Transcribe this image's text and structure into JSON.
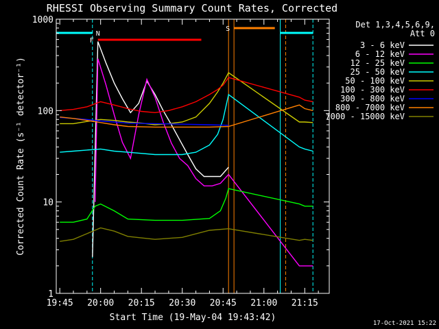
{
  "chart_data": {
    "type": "line",
    "title": "RHESSI Observing Summary Count Rates, Corrected",
    "xlabel": "Start Time (19-May-04 19:43:42)",
    "ylabel": "Corrected Count Rate (s⁻¹ detector⁻¹)",
    "y_scale": "log",
    "ylim": [
      1,
      1000
    ],
    "xlim": [
      "19:43:42",
      "21:24:00"
    ],
    "x_ticks": [
      "19:45",
      "20:00",
      "20:15",
      "20:30",
      "20:45",
      "21:00",
      "21:15"
    ],
    "y_ticks": [
      "1",
      "10",
      "100",
      "1000"
    ],
    "legend_header": [
      "Det 1,3,4,5,6,9,",
      "Att 0"
    ],
    "legend_position": "right",
    "colors": {
      "3 - 6 keV": "#ffffff",
      "6 - 12 keV": "#ff00ff",
      "12 - 25 keV": "#00ff00",
      "25 - 50 keV": "#00ffff",
      "50 - 100 keV": "#cccc00",
      "100 - 300 keV": "#ff0000",
      "300 - 800 keV": "#0000ff",
      "800 - 7000 keV": "#ff8000",
      "7000 - 15000 keV": "#808000"
    },
    "series": [
      {
        "name": "3 - 6 keV",
        "x": [
          "19:57",
          "19:59",
          "20:02",
          "20:05",
          "20:08",
          "20:11",
          "20:14",
          "20:17",
          "20:20",
          "20:23",
          "20:26",
          "20:29",
          "20:32",
          "20:35",
          "20:38",
          "20:41",
          "20:44",
          "20:47"
        ],
        "y": [
          2.5,
          570,
          330,
          200,
          135,
          95,
          120,
          210,
          150,
          100,
          70,
          48,
          33,
          23,
          19,
          19,
          19,
          24
        ]
      },
      {
        "name": "6 - 12 keV",
        "x": [
          "19:58",
          "19:59",
          "20:02",
          "20:05",
          "20:08",
          "20:11",
          "20:14",
          "20:17",
          "20:20",
          "20:23",
          "20:26",
          "20:29",
          "20:32",
          "20:35",
          "20:38",
          "20:41",
          "20:44",
          "20:47",
          "21:13",
          "21:15",
          "21:18"
        ],
        "y": [
          10,
          370,
          190,
          90,
          45,
          30,
          90,
          220,
          140,
          75,
          44,
          30,
          25,
          18,
          15,
          15,
          16,
          20,
          2,
          2,
          2
        ]
      },
      {
        "name": "12 - 25 keV",
        "x": [
          "19:45",
          "19:50",
          "19:55",
          "19:58",
          "20:00",
          "20:05",
          "20:10",
          "20:20",
          "20:30",
          "20:40",
          "20:44",
          "20:46",
          "20:47",
          "21:13",
          "21:15",
          "21:18"
        ],
        "y": [
          6,
          6,
          6.5,
          9,
          9.5,
          8,
          6.5,
          6.3,
          6.3,
          6.6,
          8,
          11,
          14,
          9.5,
          9,
          9
        ]
      },
      {
        "name": "25 - 50 keV",
        "x": [
          "19:45",
          "19:50",
          "19:55",
          "20:00",
          "20:05",
          "20:10",
          "20:20",
          "20:30",
          "20:35",
          "20:40",
          "20:43",
          "20:45",
          "20:47",
          "21:13",
          "21:15",
          "21:18"
        ],
        "y": [
          35,
          36,
          37,
          38,
          36,
          35,
          33,
          33,
          35,
          42,
          55,
          80,
          150,
          40,
          38,
          36
        ]
      },
      {
        "name": "50 - 100 keV",
        "x": [
          "19:45",
          "19:50",
          "19:55",
          "20:00",
          "20:05",
          "20:10",
          "20:15",
          "20:20",
          "20:25",
          "20:30",
          "20:35",
          "20:40",
          "20:43",
          "20:45",
          "20:47",
          "21:13",
          "21:15",
          "21:18"
        ],
        "y": [
          72,
          72,
          76,
          80,
          78,
          75,
          73,
          70,
          72,
          75,
          85,
          120,
          160,
          200,
          260,
          75,
          75,
          74
        ]
      },
      {
        "name": "100 - 300 keV",
        "x": [
          "19:45",
          "19:50",
          "19:55",
          "20:00",
          "20:05",
          "20:10",
          "20:15",
          "20:20",
          "20:25",
          "20:30",
          "20:35",
          "20:40",
          "20:43",
          "20:45",
          "20:47",
          "21:13",
          "21:15",
          "21:18"
        ],
        "y": [
          100,
          103,
          110,
          125,
          115,
          105,
          98,
          95,
          100,
          110,
          125,
          150,
          170,
          190,
          230,
          140,
          130,
          125
        ]
      },
      {
        "name": "300 - 800 keV",
        "x": [
          "19:45",
          "19:50",
          "19:55",
          "20:00",
          "20:05",
          "20:10",
          "20:20",
          "20:30",
          "20:40",
          "20:47"
        ],
        "y": [
          84,
          82,
          80,
          77,
          75,
          73,
          72,
          71,
          70,
          69
        ]
      },
      {
        "name": "800 - 7000 keV",
        "x": [
          "19:45",
          "19:50",
          "19:55",
          "20:00",
          "20:05",
          "20:10",
          "20:20",
          "20:30",
          "20:40",
          "20:47",
          "21:13",
          "21:15",
          "21:18"
        ],
        "y": [
          85,
          82,
          78,
          74,
          70,
          67,
          66,
          66,
          66,
          67,
          115,
          105,
          100
        ]
      },
      {
        "name": "7000 - 15000 keV",
        "x": [
          "19:45",
          "19:50",
          "19:55",
          "20:00",
          "20:05",
          "20:10",
          "20:20",
          "20:30",
          "20:40",
          "20:47",
          "21:13",
          "21:15",
          "21:18"
        ],
        "y": [
          3.7,
          3.9,
          4.5,
          5.2,
          4.8,
          4.2,
          3.9,
          4.1,
          4.9,
          5.1,
          3.8,
          3.9,
          3.8
        ]
      }
    ],
    "flags": [
      {
        "label": "N",
        "color": "#00ffff",
        "segments": [
          [
            "19:43:42",
            "19:57"
          ],
          [
            "21:06",
            "21:18"
          ]
        ]
      },
      {
        "label": "F",
        "color": "#ff0000",
        "segments": [
          [
            "19:59",
            "20:37"
          ]
        ]
      },
      {
        "label": "S",
        "color": "#ff8000",
        "segments": [
          [
            "20:49",
            "21:04"
          ]
        ]
      }
    ],
    "vertical_lines": [
      {
        "time": "19:57",
        "color": "#00ffff",
        "style": "dashed"
      },
      {
        "time": "20:47",
        "color": "#ff8000",
        "style": "solid"
      },
      {
        "time": "20:49",
        "color": "#ff8000",
        "style": "solid"
      },
      {
        "time": "21:06",
        "color": "#00ffff",
        "style": "solid"
      },
      {
        "time": "21:08",
        "color": "#ff8000",
        "style": "dashed"
      },
      {
        "time": "21:18",
        "color": "#00ffff",
        "style": "dashed"
      }
    ]
  },
  "footer": {
    "date": "17-Oct-2021 15:22"
  }
}
